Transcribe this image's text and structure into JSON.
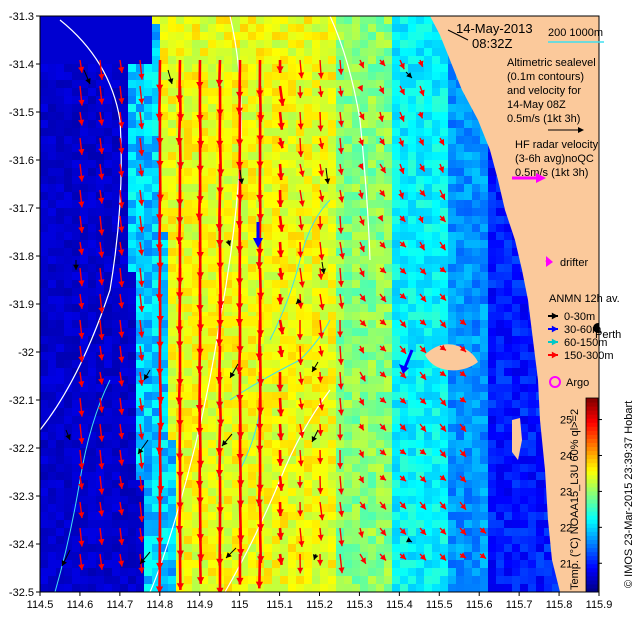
{
  "map": {
    "date_label": "14-May-2013",
    "time_label": "08:32Z",
    "scale_bar_label": "200   1000m",
    "altimetry_legend": [
      "Altimetric sealevel",
      "(0.1m contours)",
      "and velocity for",
      "14-May 08Z",
      "0.5m/s (1kt 3h)"
    ],
    "hf_radar_legend": [
      "HF radar velocity",
      "(3-6h avg)noQC",
      "0.5m/s (1kt 3h)"
    ],
    "drifter_label": "drifter",
    "anmn_title": "ANMN 12h av.",
    "anmn_depths": [
      "0-30m",
      "30-60m",
      "60-150m",
      "150-300m"
    ],
    "anmn_colors": [
      "#000000",
      "#0000ff",
      "#00c8c8",
      "#ff0000"
    ],
    "city_label": "Perth",
    "argo_label": "Argo",
    "credit_label": "© IMOS 23-Mar-2015 23:39:37 Hobart",
    "colorbar_label": "Temp. (°C) NOAA15_L3U 60% ql>=2",
    "colorbar_ticks": [
      "21",
      "22",
      "23",
      "24",
      "25"
    ],
    "colorbar_range": [
      20.2,
      25.6
    ],
    "x_ticks": [
      "114.5",
      "114.6",
      "114.7",
      "114.8",
      "114.9",
      "115",
      "115.1",
      "115.2",
      "115.3",
      "115.4",
      "115.5",
      "115.6",
      "115.7",
      "115.8",
      "115.9"
    ],
    "y_ticks": [
      "-31.3",
      "-31.4",
      "-31.5",
      "-31.6",
      "-31.7",
      "-31.8",
      "-31.9",
      "-32",
      "-32.1",
      "-32.2",
      "-32.3",
      "-32.4",
      "-32.5"
    ],
    "lon_range": [
      114.5,
      115.9
    ],
    "lat_range": [
      -32.5,
      -31.3
    ],
    "colors": {
      "land": "#fbc99b",
      "hf_arrow": "#ff0000",
      "altimetry_arrow": "#000000",
      "hf_legend_arrow": "#ff00ff",
      "contour": "#ffffff",
      "isobath": "#40e0f0"
    }
  }
}
